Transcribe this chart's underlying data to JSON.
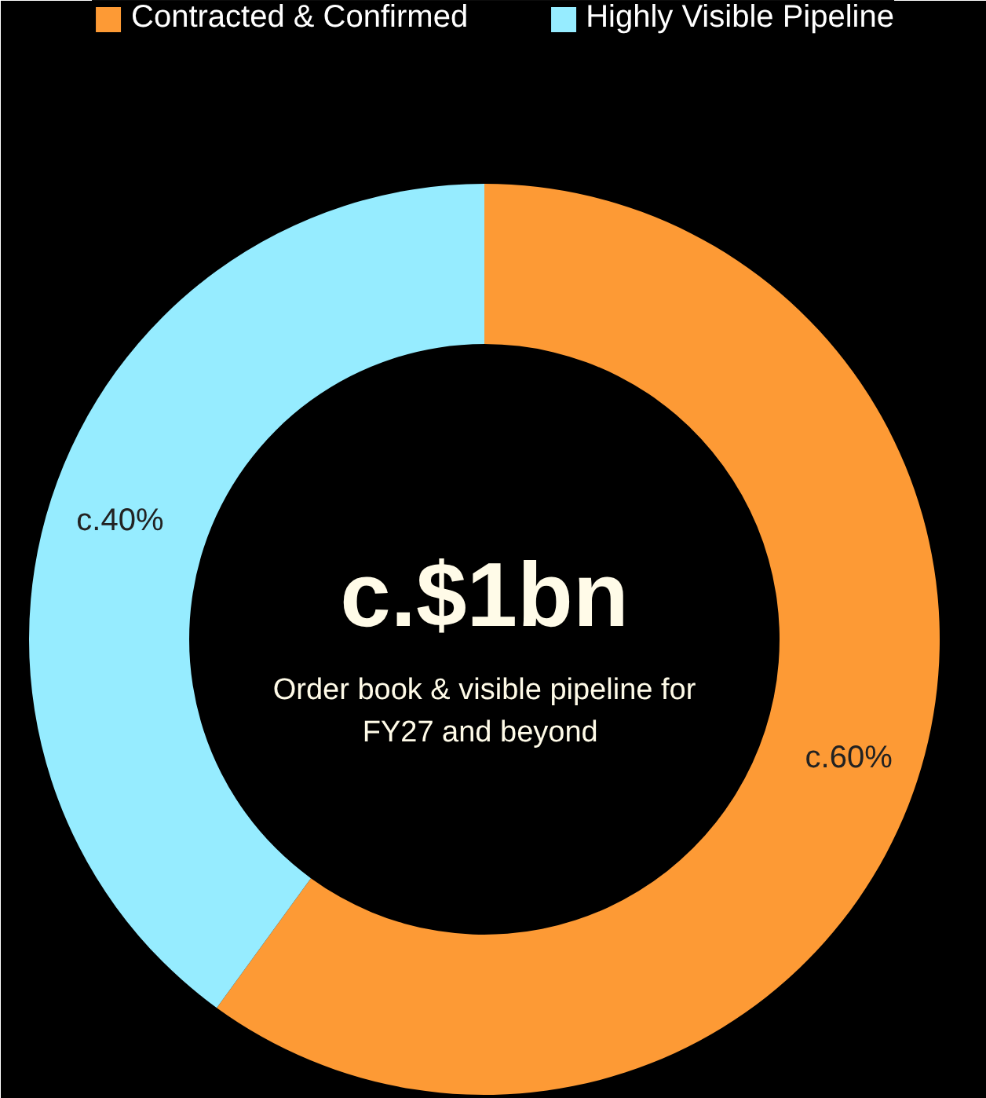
{
  "chart_data": {
    "type": "donut",
    "categories": [
      "Contracted & Confirmed",
      "Highly Visible Pipeline"
    ],
    "values": [
      60,
      40
    ],
    "colors": [
      "#fd9a35",
      "#96ecff"
    ],
    "value_labels": [
      "c.60%",
      "c.40%"
    ],
    "annotations": [
      "c.$1bn",
      "Order book & visible pipeline for\nFY27  and beyond"
    ],
    "legend": "top"
  }
}
